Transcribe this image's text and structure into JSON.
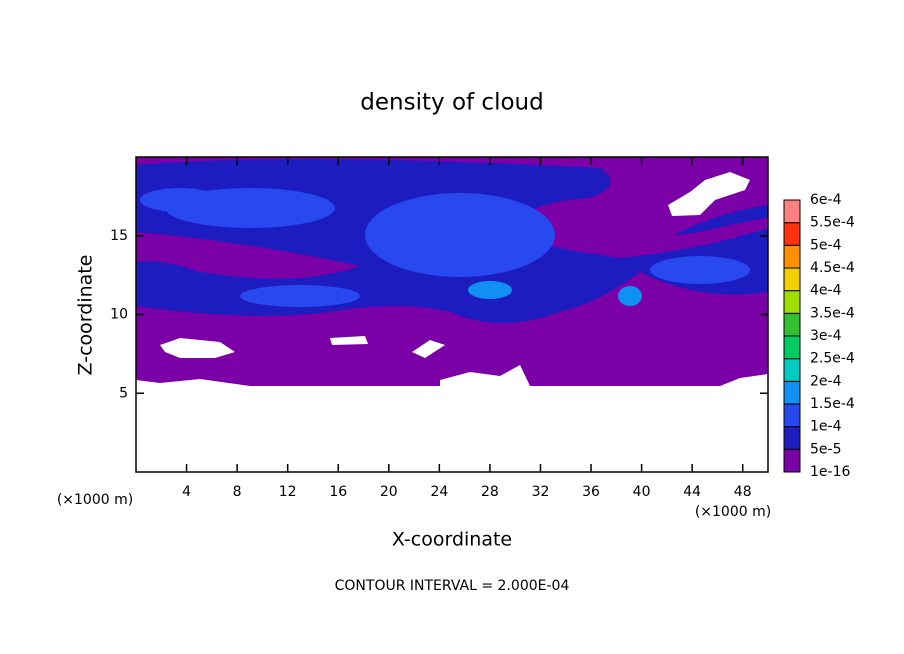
{
  "chart_data": {
    "type": "contour",
    "title": "density of cloud",
    "xlabel": "X-coordinate",
    "ylabel": "Z-coordinate",
    "x_unit_label": "(×1000 m)",
    "y_unit_label": "(×1000 m)",
    "note": "CONTOUR INTERVAL = 2.000E-04",
    "xlim": [
      0,
      50
    ],
    "ylim": [
      0,
      20
    ],
    "xticks": [
      4,
      8,
      12,
      16,
      20,
      24,
      28,
      32,
      36,
      40,
      44,
      48
    ],
    "yticks": [
      5,
      10,
      15
    ],
    "colorbar": {
      "levels": [
        {
          "value": 1e-16,
          "label": "1e-16"
        },
        {
          "value": 5e-05,
          "label": "5e-5"
        },
        {
          "value": 0.0001,
          "label": "1e-4"
        },
        {
          "value": 0.00015,
          "label": "1.5e-4"
        },
        {
          "value": 0.0002,
          "label": "2e-4"
        },
        {
          "value": 0.00025,
          "label": "2.5e-4"
        },
        {
          "value": 0.0003,
          "label": "3e-4"
        },
        {
          "value": 0.00035,
          "label": "3.5e-4"
        },
        {
          "value": 0.0004,
          "label": "4e-4"
        },
        {
          "value": 0.00045,
          "label": "4.5e-4"
        },
        {
          "value": 0.0005,
          "label": "5e-4"
        },
        {
          "value": 0.00055,
          "label": "5.5e-4"
        },
        {
          "value": 0.0006,
          "label": "6e-4"
        }
      ],
      "colors": [
        "#7b00a8",
        "#1c1cc0",
        "#2848f0",
        "#1090f0",
        "#00ccc0",
        "#00cc60",
        "#30c030",
        "#a0e000",
        "#f0d000",
        "#ff9000",
        "#ff3010",
        "#ff8080"
      ]
    }
  }
}
